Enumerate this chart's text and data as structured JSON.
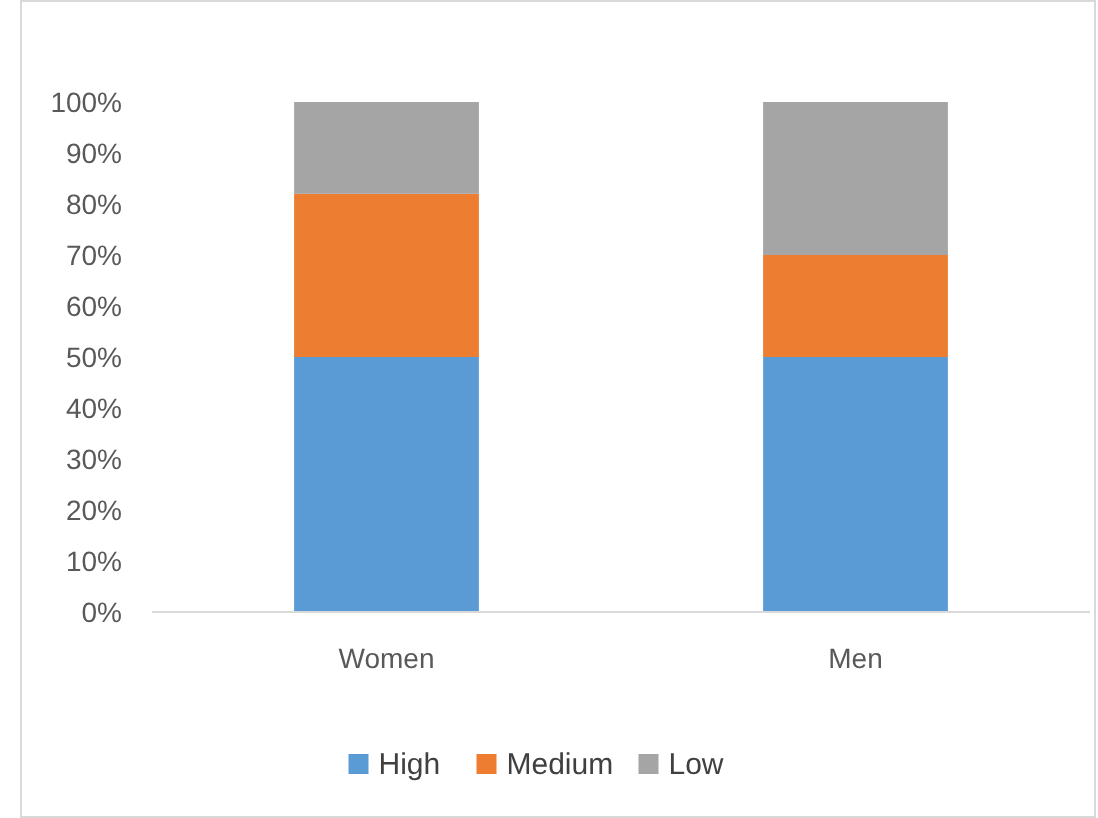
{
  "chart_data": {
    "type": "bar",
    "stacked": true,
    "categories": [
      "Women",
      "Men"
    ],
    "series": [
      {
        "name": "High",
        "color": "#5b9bd5",
        "values": [
          50,
          50
        ]
      },
      {
        "name": "Medium",
        "color": "#ed7d31",
        "values": [
          32,
          20
        ]
      },
      {
        "name": "Low",
        "color": "#a5a5a5",
        "values": [
          18,
          30
        ]
      }
    ],
    "ylim": [
      0,
      100
    ],
    "yticks": [
      {
        "value": 0,
        "label": "0%"
      },
      {
        "value": 10,
        "label": "10%"
      },
      {
        "value": 20,
        "label": "20%"
      },
      {
        "value": 30,
        "label": "30%"
      },
      {
        "value": 40,
        "label": "40%"
      },
      {
        "value": 50,
        "label": "50%"
      },
      {
        "value": 60,
        "label": "60%"
      },
      {
        "value": 70,
        "label": "70%"
      },
      {
        "value": 80,
        "label": "80%"
      },
      {
        "value": 90,
        "label": "90%"
      },
      {
        "value": 100,
        "label": "100%"
      }
    ],
    "grid": false,
    "legend": "bottom"
  }
}
